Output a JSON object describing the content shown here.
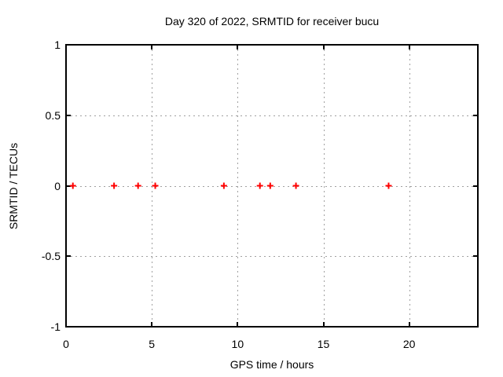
{
  "chart_data": {
    "type": "scatter",
    "title": "Day 320 of 2022, SRMTID for receiver bucu",
    "xlabel": "GPS time / hours",
    "ylabel": "SRMTID / TECUs",
    "xlim": [
      0,
      24
    ],
    "ylim": [
      -1,
      1
    ],
    "grid": true,
    "legend": "none",
    "marker": "plus",
    "x_ticks": [
      {
        "value": 0,
        "label": "0"
      },
      {
        "value": 5,
        "label": "5"
      },
      {
        "value": 10,
        "label": "10"
      },
      {
        "value": 15,
        "label": "15"
      },
      {
        "value": 20,
        "label": "20"
      }
    ],
    "y_ticks": [
      {
        "value": 1,
        "label": "1"
      },
      {
        "value": 0.5,
        "label": "0.5"
      },
      {
        "value": 0,
        "label": "0"
      },
      {
        "value": -0.5,
        "label": "-0.5"
      },
      {
        "value": -1,
        "label": "-1"
      }
    ],
    "colors": {
      "marker": "#ff0000",
      "grid": "#a0a0a0",
      "frame": "#000000",
      "text": "#000000"
    },
    "series": [
      {
        "name": "SRMTID",
        "x": [
          0.4,
          2.8,
          4.2,
          5.2,
          9.2,
          11.3,
          11.9,
          13.4,
          18.8
        ],
        "y": [
          0,
          0,
          0,
          0,
          0,
          0,
          0,
          0,
          0
        ]
      }
    ]
  }
}
